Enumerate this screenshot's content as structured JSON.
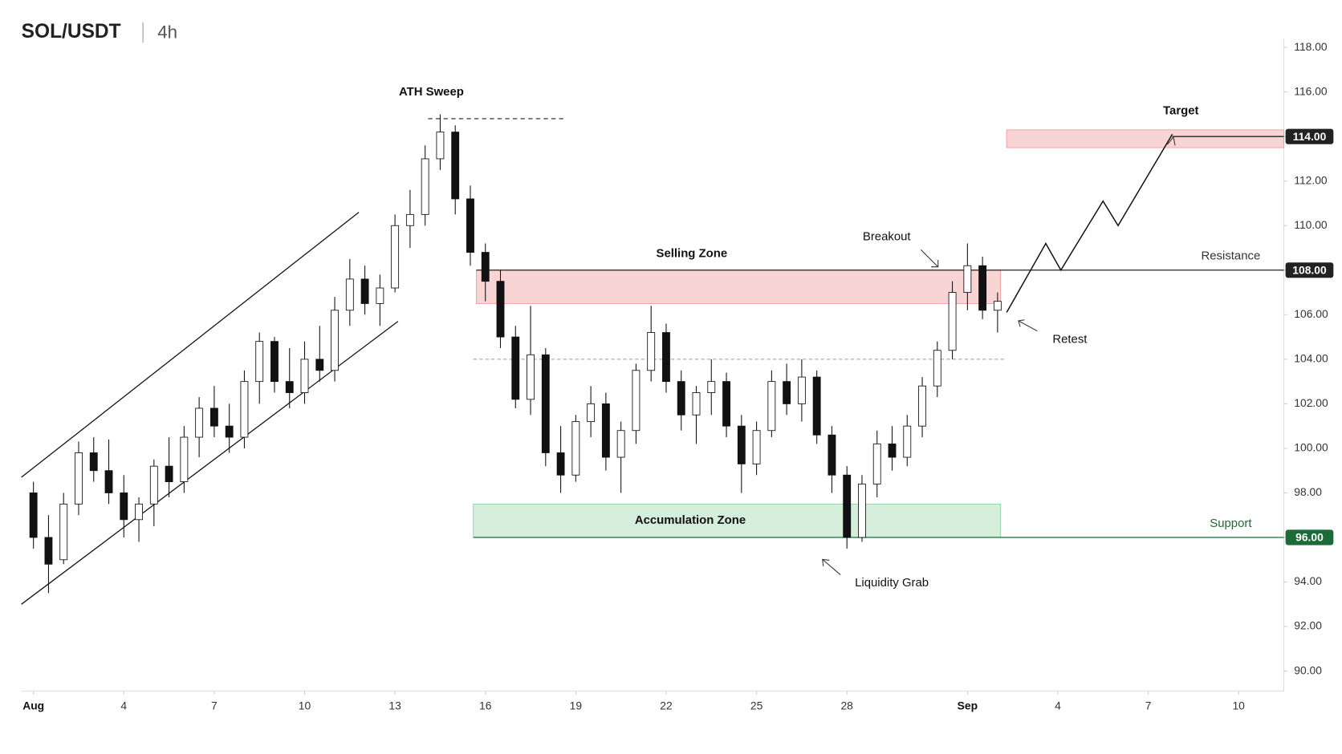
{
  "header": {
    "symbol": "SOL/USDT",
    "interval": "4h"
  },
  "chart_data": {
    "type": "candlestick",
    "x": [
      0,
      0.5,
      1,
      1.5,
      2,
      2.5,
      3,
      3.5,
      4,
      4.5,
      5,
      5.5,
      6,
      6.5,
      7,
      7.5,
      8,
      8.5,
      9,
      9.5,
      10,
      10.5,
      11,
      11.5,
      12,
      12.5,
      13,
      13.5,
      14,
      14.5,
      15,
      15.5,
      16,
      16.5,
      17,
      17.5,
      18,
      18.5,
      19,
      19.5,
      20,
      20.5,
      21,
      21.5,
      22,
      22.5,
      23,
      23.5,
      24,
      24.5,
      25,
      25.5,
      26,
      26.5,
      27,
      27.5,
      28,
      28.5,
      29,
      29.5,
      30,
      30.5,
      31,
      31.5,
      32
    ],
    "candles": [
      [
        98,
        98.5,
        95.5,
        96
      ],
      [
        96,
        97,
        93.5,
        94.8
      ],
      [
        95,
        98,
        94.8,
        97.5
      ],
      [
        97.5,
        100.3,
        97,
        99.8
      ],
      [
        99.8,
        100.5,
        98.5,
        99
      ],
      [
        99,
        100.4,
        97.5,
        98
      ],
      [
        98,
        98.8,
        96,
        96.8
      ],
      [
        96.8,
        97.8,
        95.8,
        97.5
      ],
      [
        97.5,
        99.5,
        96.5,
        99.2
      ],
      [
        99.2,
        100.5,
        97.8,
        98.5
      ],
      [
        98.5,
        101,
        98,
        100.5
      ],
      [
        100.5,
        102.3,
        99.6,
        101.8
      ],
      [
        101.8,
        102.8,
        100.5,
        101
      ],
      [
        101,
        102,
        99.8,
        100.5
      ],
      [
        100.5,
        103.5,
        100,
        103
      ],
      [
        103,
        105.2,
        102,
        104.8
      ],
      [
        104.8,
        105,
        102.5,
        103
      ],
      [
        103,
        104.5,
        101.8,
        102.5
      ],
      [
        102.5,
        104.8,
        102,
        104
      ],
      [
        104,
        105.5,
        103,
        103.5
      ],
      [
        103.5,
        106.8,
        103,
        106.2
      ],
      [
        106.2,
        108.5,
        105.5,
        107.6
      ],
      [
        107.6,
        108.2,
        106,
        106.5
      ],
      [
        106.5,
        107.8,
        105.5,
        107.2
      ],
      [
        107.2,
        110.5,
        107,
        110
      ],
      [
        110,
        111.6,
        109,
        110.5
      ],
      [
        110.5,
        113.6,
        110,
        113
      ],
      [
        113,
        115,
        112.5,
        114.2
      ],
      [
        114.2,
        114.5,
        110.5,
        111.2
      ],
      [
        111.2,
        111.8,
        108.2,
        108.8
      ],
      [
        108.8,
        109.2,
        106.6,
        107.5
      ],
      [
        107.5,
        108,
        104.5,
        105
      ],
      [
        105,
        105.5,
        101.8,
        102.2
      ],
      [
        102.2,
        106.4,
        101.5,
        104.2
      ],
      [
        104.2,
        104.5,
        99.2,
        99.8
      ],
      [
        99.8,
        101,
        98,
        98.8
      ],
      [
        98.8,
        101.5,
        98.5,
        101.2
      ],
      [
        101.2,
        102.8,
        100.5,
        102
      ],
      [
        102,
        102.5,
        99,
        99.6
      ],
      [
        99.6,
        101.2,
        98,
        100.8
      ],
      [
        100.8,
        103.8,
        100.2,
        103.5
      ],
      [
        103.5,
        106.4,
        103,
        105.2
      ],
      [
        105.2,
        105.6,
        102.5,
        103
      ],
      [
        103,
        103.5,
        100.8,
        101.5
      ],
      [
        101.5,
        102.8,
        100.2,
        102.5
      ],
      [
        102.5,
        104,
        101.5,
        103
      ],
      [
        103,
        103.4,
        100.5,
        101
      ],
      [
        101,
        101.5,
        98,
        99.3
      ],
      [
        99.3,
        101.2,
        98.8,
        100.8
      ],
      [
        100.8,
        103.5,
        100.5,
        103
      ],
      [
        103,
        103.8,
        101.5,
        102
      ],
      [
        102,
        104,
        101.2,
        103.2
      ],
      [
        103.2,
        103.5,
        100.2,
        100.6
      ],
      [
        100.6,
        101,
        98,
        98.8
      ],
      [
        98.8,
        99.2,
        95.5,
        96
      ],
      [
        96,
        98.8,
        95.8,
        98.4
      ],
      [
        98.4,
        100.8,
        97.8,
        100.2
      ],
      [
        100.2,
        101,
        99,
        99.6
      ],
      [
        99.6,
        101.5,
        99.2,
        101
      ],
      [
        101,
        103.2,
        100.5,
        102.8
      ],
      [
        102.8,
        104.8,
        102.3,
        104.4
      ],
      [
        104.4,
        107.5,
        104,
        107
      ],
      [
        107,
        109.2,
        106.2,
        108.2
      ],
      [
        108.2,
        108.6,
        105.8,
        106.2
      ],
      [
        106.2,
        107,
        105.2,
        106.6
      ]
    ],
    "up_color": "#ffffff",
    "down_color": "#111111",
    "xlim": [
      -0.4,
      41.5
    ],
    "ylim": [
      89.1,
      118.4
    ],
    "xticks": [
      {
        "value": 0,
        "label": "Aug"
      },
      {
        "value": 3,
        "label": "4"
      },
      {
        "value": 6,
        "label": "7"
      },
      {
        "value": 9,
        "label": "10"
      },
      {
        "value": 12,
        "label": "13"
      },
      {
        "value": 15,
        "label": "16"
      },
      {
        "value": 18,
        "label": "19"
      },
      {
        "value": 21,
        "label": "22"
      },
      {
        "value": 24,
        "label": "25"
      },
      {
        "value": 27,
        "label": "28"
      },
      {
        "value": 31,
        "label": "Sep"
      },
      {
        "value": 34,
        "label": "4"
      },
      {
        "value": 37,
        "label": "7"
      },
      {
        "value": 40,
        "label": "10"
      }
    ],
    "yticks": [
      {
        "value": 90,
        "label": "90.00"
      },
      {
        "value": 92,
        "label": "92.00"
      },
      {
        "value": 94,
        "label": "94.00"
      },
      {
        "value": 96,
        "label": "96.00"
      },
      {
        "value": 98,
        "label": "98.00"
      },
      {
        "value": 100,
        "label": "100.00"
      },
      {
        "value": 102,
        "label": "102.00"
      },
      {
        "value": 104,
        "label": "104.00"
      },
      {
        "value": 106,
        "label": "106.00"
      },
      {
        "value": 108,
        "label": "108.00"
      },
      {
        "value": 110,
        "label": "110.00"
      },
      {
        "value": 112,
        "label": "112.00"
      },
      {
        "value": 114,
        "label": "114.00"
      },
      {
        "value": 116,
        "label": "116.00"
      },
      {
        "value": 118,
        "label": "118.00"
      }
    ],
    "zones": [
      {
        "label": "Selling Zone",
        "x": [
          14.7,
          32.1
        ],
        "y": [
          106.5,
          108
        ],
        "color": "#f9d4d4"
      },
      {
        "label": "Accumulation Zone",
        "x": [
          14.6,
          32.1
        ],
        "y": [
          96,
          97.5
        ],
        "color": "#d5eedb"
      },
      {
        "label": "Target",
        "x": [
          32.3,
          41.5
        ],
        "y": [
          113.5,
          114.3
        ],
        "color": "#f9d4d4"
      }
    ],
    "levels": [
      {
        "label": "Resistance",
        "value": 108,
        "value_label": "108.00",
        "color": "#222222",
        "x_start": 14.7
      },
      {
        "label": "Support",
        "value": 96,
        "value_label": "96.00",
        "color": "#1e6b3a",
        "x_start": 14.6
      },
      {
        "value": 114,
        "value_label": "114.00",
        "color": "#222222",
        "x_start": 37.8
      }
    ],
    "dashed_levels": [
      {
        "value": 104,
        "x": [
          14.6,
          32.3
        ]
      },
      {
        "value": 114.8,
        "x": [
          13.1,
          17.6
        ]
      }
    ],
    "channel": [
      {
        "x": [
          -0.4,
          10.8
        ],
        "y": [
          98.7,
          110.6
        ]
      },
      {
        "x": [
          -0.4,
          12.1
        ],
        "y": [
          93,
          105.7
        ]
      }
    ],
    "projection": {
      "x": [
        32.3,
        33.6,
        34.1,
        35.5,
        36,
        37.8
      ],
      "y": [
        106.1,
        109.2,
        108,
        111.1,
        110,
        114.1
      ]
    },
    "annotations": [
      "ATH Sweep",
      "Breakout",
      "Retest",
      "Liquidity Grab"
    ]
  }
}
